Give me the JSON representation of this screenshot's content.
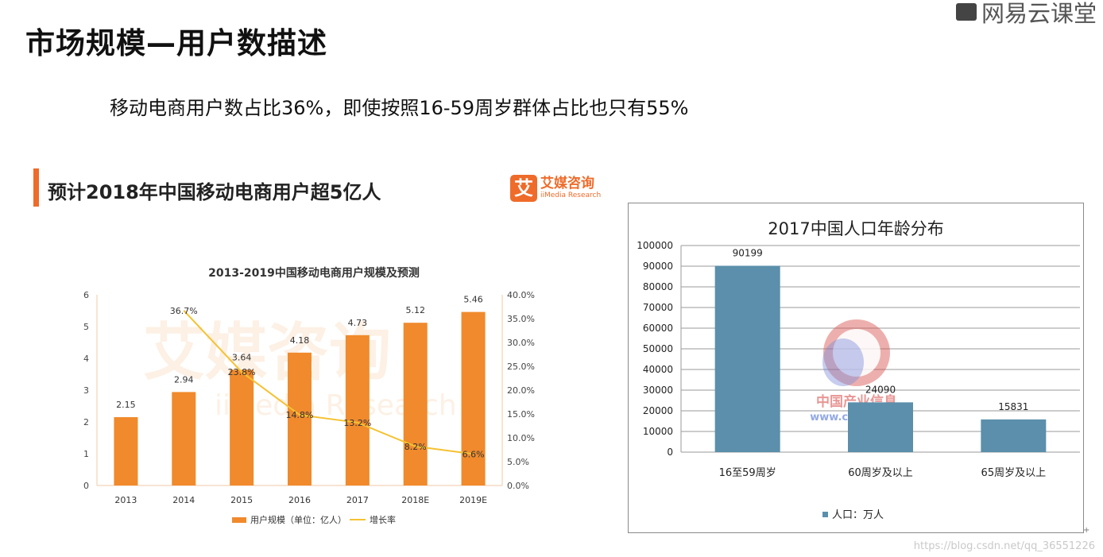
{
  "page": {
    "title": "市场规模—用户数描述",
    "subtitle": "移动电商用户数占比36%，即使按照16-59周岁群体占比也只有55%",
    "brand": "网易云课堂",
    "watermark": "https://blog.csdn.net/qq_36551226",
    "corner_mark": "+"
  },
  "left_panel": {
    "heading": "预计2018年中国移动电商用户超5亿人",
    "logo_mark": "艾",
    "logo_cn": "艾媒咨询",
    "logo_en": "iiMedia Research",
    "bg_watermark_cn": "艾媒咨询",
    "bg_watermark_en": "iiMedia Research"
  },
  "right_panel": {
    "logo_text_cn": "中国产业信息",
    "logo_text_url": "www.chyxx.com"
  },
  "colors": {
    "accent": "#ef6b2a",
    "bar_orange": "#f08a2c",
    "line_yellow": "#f5c232",
    "bar_blue": "#5b8fab"
  },
  "chart_data": [
    {
      "type": "bar",
      "title": "2013-2019中国移动电商用户规模及预测",
      "categories": [
        "2013",
        "2014",
        "2015",
        "2016",
        "2017",
        "2018E",
        "2019E"
      ],
      "series": [
        {
          "name": "用户规模（单位：亿人）",
          "type": "bar",
          "axis": "left",
          "values": [
            2.15,
            2.94,
            3.64,
            4.18,
            4.73,
            5.12,
            5.46
          ],
          "labels": [
            "2.15",
            "2.94",
            "3.64",
            "4.18",
            "4.73",
            "5.12",
            "5.46"
          ]
        },
        {
          "name": "增长率",
          "type": "line",
          "axis": "right",
          "values": [
            null,
            36.7,
            23.8,
            14.8,
            13.2,
            8.2,
            6.6
          ],
          "labels": [
            "",
            "36.7%",
            "23.8%",
            "14.8%",
            "13.2%",
            "8.2%",
            "6.6%"
          ]
        }
      ],
      "ylim": [
        0,
        6
      ],
      "y_ticks": [
        "0",
        "1",
        "2",
        "3",
        "4",
        "5",
        "6"
      ],
      "y2lim": [
        0,
        40
      ],
      "y2_ticks": [
        "0.0%",
        "5.0%",
        "10.0%",
        "15.0%",
        "20.0%",
        "25.0%",
        "30.0%",
        "35.0%",
        "40.0%"
      ],
      "legend": "bottom",
      "grid": false
    },
    {
      "type": "bar",
      "title": "2017中国人口年龄分布",
      "categories": [
        "16至59周岁",
        "60周岁及以上",
        "65周岁及以上"
      ],
      "series": [
        {
          "name": "人口：万人",
          "values": [
            90199,
            24090,
            15831
          ],
          "labels": [
            "90199",
            "24090",
            "15831"
          ]
        }
      ],
      "ylim": [
        0,
        100000
      ],
      "y_ticks": [
        "0",
        "10000",
        "20000",
        "30000",
        "40000",
        "50000",
        "60000",
        "70000",
        "80000",
        "90000",
        "100000"
      ],
      "legend": "bottom",
      "grid": true
    }
  ]
}
